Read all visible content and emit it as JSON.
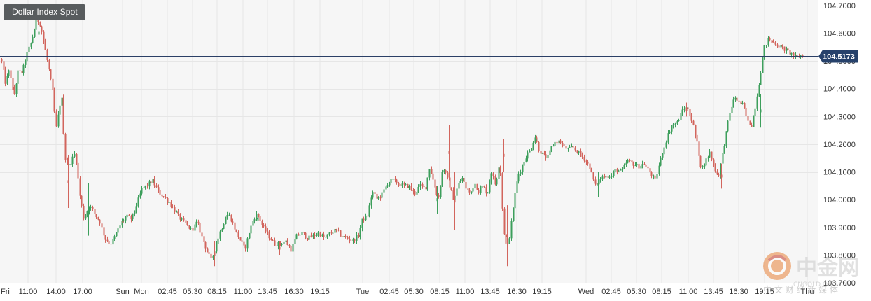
{
  "chart_data": {
    "type": "candlestick",
    "title": "Dollar Index Spot",
    "current_price": "104.5173",
    "ylim": [
      103.7,
      104.72
    ],
    "y_ticks": [
      104.7,
      104.6,
      104.5,
      104.4,
      104.3,
      104.2,
      104.1,
      104.0,
      103.9,
      103.8,
      103.7
    ],
    "y_tick_labels": [
      "104.7000",
      "104.6000",
      "104.5000",
      "104.4000",
      "104.3000",
      "104.2000",
      "104.1000",
      "104.0000",
      "103.9000",
      "103.8000",
      "103.7000"
    ],
    "x_labels": [
      "Fri",
      "11:00",
      "14:00",
      "17:00",
      "Sun",
      "Mon",
      "02:45",
      "05:30",
      "08:15",
      "11:00",
      "13:45",
      "16:30",
      "19:15",
      "Tue",
      "02:45",
      "05:30",
      "08:15",
      "11:00",
      "13:45",
      "16:30",
      "19:15",
      "Wed",
      "02:45",
      "05:30",
      "08:15",
      "11:00",
      "13:45",
      "16:30",
      "19:15",
      "Thu"
    ],
    "grid": true,
    "colors": {
      "up": "#3d9f5c",
      "down": "#d2655d",
      "price_line": "#2b3f66",
      "price_label_bg": "#26416b",
      "grid": "#e6e6e6",
      "plot_bg": "#f6f6f6"
    },
    "path": [
      [
        0,
        104.48
      ],
      [
        3,
        104.52
      ],
      [
        10,
        104.42
      ],
      [
        16,
        104.47
      ],
      [
        22,
        104.37
      ],
      [
        28,
        104.46
      ],
      [
        34,
        104.46
      ],
      [
        40,
        104.52
      ],
      [
        47,
        104.57
      ],
      [
        55,
        104.65
      ],
      [
        60,
        104.63
      ],
      [
        66,
        104.55
      ],
      [
        72,
        104.47
      ],
      [
        78,
        104.38
      ],
      [
        82,
        104.25
      ],
      [
        90,
        104.38
      ],
      [
        95,
        104.15
      ],
      [
        100,
        104.12
      ],
      [
        110,
        104.17
      ],
      [
        116,
        104.02
      ],
      [
        122,
        103.93
      ],
      [
        130,
        103.98
      ],
      [
        137,
        103.95
      ],
      [
        145,
        103.92
      ],
      [
        152,
        103.86
      ],
      [
        160,
        103.84
      ],
      [
        167,
        103.87
      ],
      [
        176,
        103.92
      ],
      [
        183,
        103.94
      ],
      [
        190,
        103.93
      ],
      [
        197,
        103.98
      ],
      [
        205,
        104.04
      ],
      [
        212,
        104.05
      ],
      [
        220,
        104.07
      ],
      [
        228,
        104.03
      ],
      [
        236,
        104.01
      ],
      [
        244,
        103.99
      ],
      [
        252,
        103.96
      ],
      [
        260,
        103.93
      ],
      [
        268,
        103.91
      ],
      [
        276,
        103.89
      ],
      [
        284,
        103.92
      ],
      [
        290,
        103.87
      ],
      [
        297,
        103.82
      ],
      [
        304,
        103.78
      ],
      [
        310,
        103.83
      ],
      [
        316,
        103.88
      ],
      [
        322,
        103.92
      ],
      [
        328,
        103.95
      ],
      [
        334,
        103.92
      ],
      [
        340,
        103.88
      ],
      [
        346,
        103.85
      ],
      [
        352,
        103.82
      ],
      [
        358,
        103.88
      ],
      [
        364,
        103.93
      ],
      [
        370,
        103.95
      ],
      [
        378,
        103.9
      ],
      [
        386,
        103.87
      ],
      [
        394,
        103.84
      ],
      [
        402,
        103.84
      ],
      [
        410,
        103.85
      ],
      [
        418,
        103.82
      ],
      [
        426,
        103.87
      ],
      [
        434,
        103.88
      ],
      [
        442,
        103.86
      ],
      [
        450,
        103.87
      ],
      [
        458,
        103.88
      ],
      [
        466,
        103.86
      ],
      [
        474,
        103.88
      ],
      [
        482,
        103.89
      ],
      [
        490,
        103.87
      ],
      [
        498,
        103.86
      ],
      [
        506,
        103.85
      ],
      [
        514,
        103.87
      ],
      [
        520,
        103.93
      ],
      [
        527,
        103.94
      ],
      [
        534,
        104.03
      ],
      [
        541,
        104.0
      ],
      [
        548,
        104.02
      ],
      [
        556,
        104.06
      ],
      [
        563,
        104.07
      ],
      [
        570,
        104.06
      ],
      [
        578,
        104.05
      ],
      [
        586,
        104.05
      ],
      [
        594,
        104.02
      ],
      [
        602,
        104.05
      ],
      [
        610,
        104.04
      ],
      [
        616,
        104.12
      ],
      [
        622,
        104.06
      ],
      [
        628,
        104.0
      ],
      [
        635,
        104.12
      ],
      [
        642,
        104.07
      ],
      [
        650,
        104.0
      ],
      [
        656,
        104.05
      ],
      [
        662,
        104.08
      ],
      [
        668,
        104.04
      ],
      [
        674,
        104.02
      ],
      [
        680,
        104.06
      ],
      [
        686,
        104.03
      ],
      [
        692,
        104.05
      ],
      [
        698,
        104.02
      ],
      [
        704,
        104.1
      ],
      [
        710,
        104.05
      ],
      [
        716,
        104.15
      ],
      [
        721,
        103.9
      ],
      [
        726,
        103.82
      ],
      [
        731,
        103.88
      ],
      [
        736,
        103.99
      ],
      [
        742,
        104.09
      ],
      [
        748,
        104.12
      ],
      [
        754,
        104.16
      ],
      [
        760,
        104.18
      ],
      [
        766,
        104.23
      ],
      [
        772,
        104.18
      ],
      [
        778,
        104.16
      ],
      [
        784,
        104.15
      ],
      [
        790,
        104.19
      ],
      [
        796,
        104.21
      ],
      [
        802,
        104.21
      ],
      [
        808,
        104.19
      ],
      [
        814,
        104.18
      ],
      [
        820,
        104.19
      ],
      [
        828,
        104.17
      ],
      [
        836,
        104.15
      ],
      [
        844,
        104.12
      ],
      [
        852,
        104.05
      ],
      [
        858,
        104.07
      ],
      [
        866,
        104.09
      ],
      [
        874,
        104.08
      ],
      [
        882,
        104.11
      ],
      [
        890,
        104.1
      ],
      [
        898,
        104.14
      ],
      [
        906,
        104.13
      ],
      [
        914,
        104.12
      ],
      [
        922,
        104.13
      ],
      [
        930,
        104.1
      ],
      [
        938,
        104.07
      ],
      [
        946,
        104.15
      ],
      [
        952,
        104.2
      ],
      [
        958,
        104.25
      ],
      [
        964,
        104.27
      ],
      [
        970,
        104.28
      ],
      [
        978,
        104.33
      ],
      [
        985,
        104.33
      ],
      [
        992,
        104.27
      ],
      [
        998,
        104.2
      ],
      [
        1004,
        104.11
      ],
      [
        1010,
        104.14
      ],
      [
        1016,
        104.17
      ],
      [
        1022,
        104.12
      ],
      [
        1028,
        104.08
      ],
      [
        1034,
        104.16
      ],
      [
        1040,
        104.25
      ],
      [
        1046,
        104.33
      ],
      [
        1052,
        104.37
      ],
      [
        1058,
        104.35
      ],
      [
        1064,
        104.34
      ],
      [
        1070,
        104.28
      ],
      [
        1076,
        104.27
      ],
      [
        1082,
        104.35
      ],
      [
        1088,
        104.45
      ],
      [
        1094,
        104.55
      ],
      [
        1100,
        104.58
      ],
      [
        1106,
        104.57
      ],
      [
        1112,
        104.56
      ],
      [
        1118,
        104.55
      ],
      [
        1124,
        104.54
      ],
      [
        1130,
        104.53
      ],
      [
        1136,
        104.52
      ],
      [
        1140,
        104.51
      ],
      [
        1146,
        104.52
      ],
      [
        1150,
        104.52
      ]
    ],
    "spikes": [
      [
        18,
        104.3,
        104.5
      ],
      [
        55,
        104.53,
        104.67
      ],
      [
        97,
        103.97,
        104.16
      ],
      [
        126,
        103.87,
        104.06
      ],
      [
        175,
        103.89,
        103.95
      ],
      [
        306,
        103.76,
        103.85
      ],
      [
        368,
        103.88,
        103.98
      ],
      [
        399,
        103.8,
        103.85
      ],
      [
        624,
        103.95,
        104.05
      ],
      [
        641,
        104.07,
        104.27
      ],
      [
        649,
        103.89,
        104.1
      ],
      [
        719,
        104.1,
        104.22
      ],
      [
        724,
        103.76,
        103.98
      ],
      [
        765,
        104.17,
        104.26
      ],
      [
        854,
        104.01,
        104.1
      ],
      [
        980,
        104.3,
        104.35
      ],
      [
        1030,
        104.04,
        104.13
      ],
      [
        1086,
        104.26,
        104.38
      ],
      [
        1102,
        104.54,
        104.6
      ]
    ]
  },
  "watermark": {
    "brand": "中金网",
    "site": "CNGOLD.ORG.CN",
    "tagline": "中 文 财 经 新 媒 体"
  }
}
